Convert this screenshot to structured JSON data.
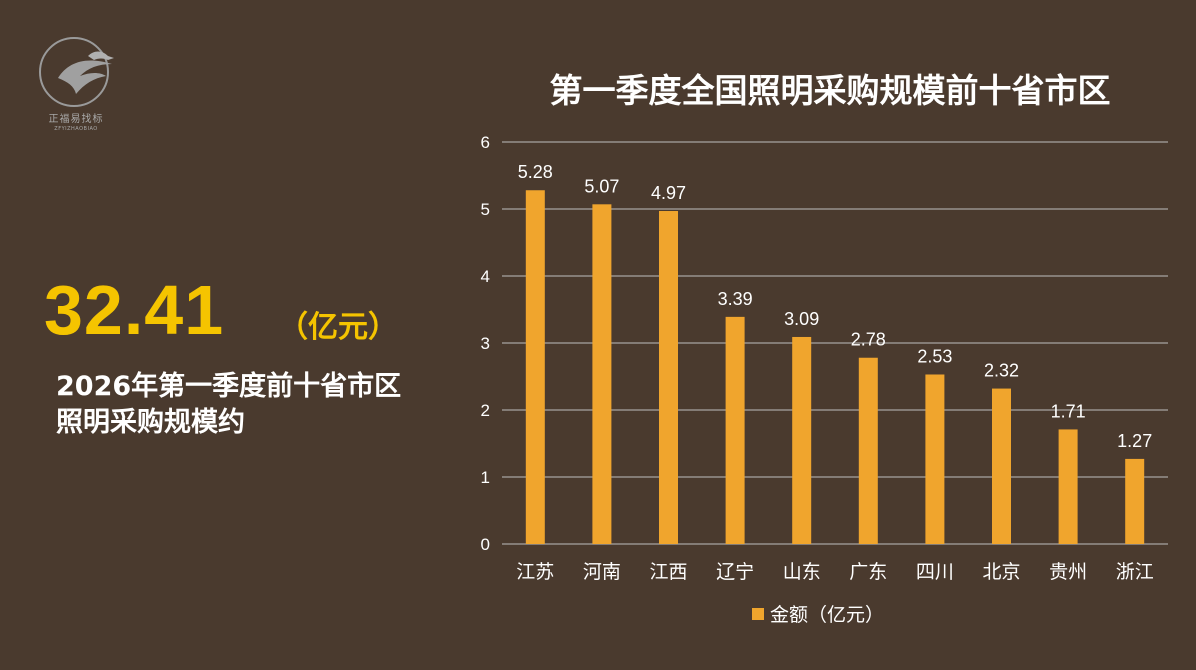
{
  "logo": {
    "text": "正福易找标",
    "subtext": "ZFYIZHAOBIAO"
  },
  "headline": {
    "value": "32.41",
    "unit": "（亿元）",
    "line1": "2026年第一季度前十省市区",
    "line2": "照明采购规模约"
  },
  "colors": {
    "bar": "#f0a52d",
    "accent": "#f5c400",
    "background": "#4a3a2e"
  },
  "chart_data": {
    "type": "bar",
    "title": "第一季度全国照明采购规模前十省市区",
    "categories": [
      "江苏",
      "河南",
      "江西",
      "辽宁",
      "山东",
      "广东",
      "四川",
      "北京",
      "贵州",
      "浙江"
    ],
    "series": [
      {
        "name": "金额（亿元）",
        "values": [
          5.28,
          5.07,
          4.97,
          3.39,
          3.09,
          2.78,
          2.53,
          2.32,
          1.71,
          1.27
        ]
      }
    ],
    "ylim": [
      0,
      6
    ],
    "yticks": [
      "0",
      "1",
      "2",
      "3",
      "4",
      "5",
      "6"
    ],
    "grid": true,
    "legend": "bottom"
  }
}
